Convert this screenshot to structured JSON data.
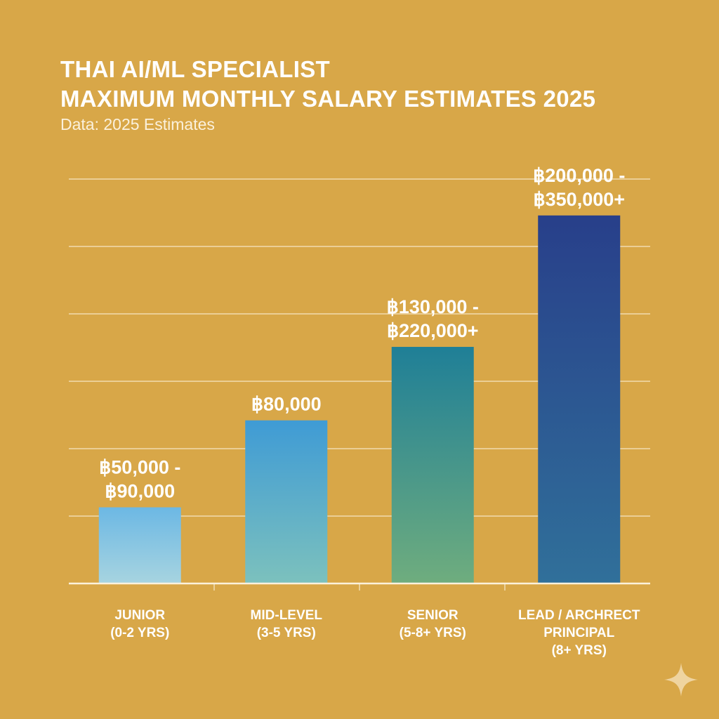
{
  "chart_data": {
    "type": "bar",
    "title": [
      "THAI AI/ML SPECIALIST",
      "MAXIMUM MONTHLY SALARY ESTIMATES 2025"
    ],
    "subtitle": "Data: 2025 Estimates",
    "categories": [
      [
        "JUNIOR",
        "(0-2 YRS)"
      ],
      [
        "MID-LEVEL",
        "(3-5 YRS)"
      ],
      [
        "SENIOR",
        "(5-8+ YRS)"
      ],
      [
        "LEAD / ARCHRECT",
        "PRINCIPAL",
        "(8+ YRS)"
      ]
    ],
    "data_labels": [
      [
        "฿50,000 -",
        "฿90,000"
      ],
      [
        "฿80,000"
      ],
      [
        "฿130,000 -",
        "฿220,000+"
      ],
      [
        "฿200,000 -",
        "฿350,000+"
      ]
    ],
    "values": [
      1.13,
      2.42,
      3.51,
      5.46
    ],
    "ylim": [
      0,
      6
    ],
    "grid": true,
    "y_tick_labels_shown": false,
    "xlabel": "",
    "ylabel": "",
    "colors": [
      [
        "#6cb8e4",
        "#a7d4e0"
      ],
      [
        "#3f9bd5",
        "#7cc1bd"
      ],
      [
        "#1f7f97",
        "#6fad7e"
      ],
      [
        "#283f8a",
        "#30709a"
      ]
    ],
    "background": "#d8a748"
  }
}
